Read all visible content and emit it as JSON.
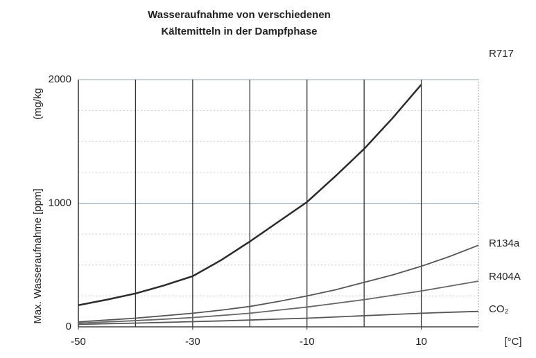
{
  "chart_data": {
    "type": "line",
    "title": [
      "Wasseraufnahme von verschiedenen",
      "Kältemitteln in der Dampfphase"
    ],
    "y_label": "Max. Wasseraufnahme [ppm]",
    "y_unit": "(mg/kg",
    "x_unit": "[°C]",
    "x": [
      -50,
      -45,
      -40,
      -35,
      -30,
      -25,
      -20,
      -15,
      -10,
      -5,
      0,
      5,
      10,
      15,
      20
    ],
    "series": [
      {
        "name": "R717",
        "color": "#2a2a2a",
        "values": [
          175,
          220,
          270,
          335,
          410,
          540,
          690,
          850,
          1010,
          1220,
          1440,
          1690,
          1960,
          null,
          null
        ]
      },
      {
        "name": "R134a",
        "color": "#555555",
        "values": [
          40,
          55,
          70,
          90,
          110,
          135,
          165,
          205,
          250,
          300,
          360,
          420,
          490,
          570,
          660
        ]
      },
      {
        "name": "R404A",
        "color": "#666666",
        "values": [
          30,
          40,
          50,
          62,
          75,
          92,
          110,
          135,
          160,
          190,
          220,
          255,
          290,
          330,
          370
        ]
      },
      {
        "name": "CO₂",
        "color": "#555555",
        "values": [
          20,
          25,
          30,
          36,
          42,
          48,
          55,
          63,
          70,
          80,
          90,
          100,
          110,
          118,
          125
        ]
      }
    ],
    "xlim": [
      -50,
      20
    ],
    "xticks": [
      -50,
      -30,
      -10,
      10
    ],
    "x_gridlines": [
      -40,
      -30,
      -20,
      -10,
      0,
      10
    ],
    "ylim": [
      0,
      2000
    ],
    "yticks": [
      0,
      1000,
      2000
    ],
    "grid": true
  }
}
